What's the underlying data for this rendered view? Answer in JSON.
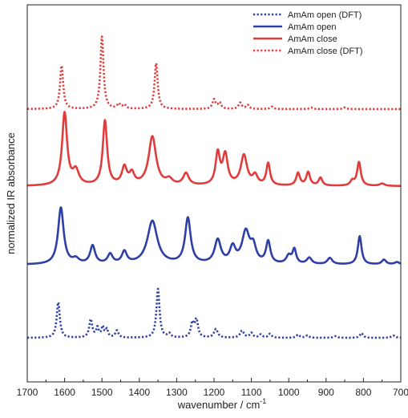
{
  "chart_data": {
    "type": "line",
    "xlabel": "wavenumber / cm",
    "xlabel_superscript": "-1",
    "ylabel": "normalized IR absorbance",
    "xlim": [
      1700,
      700
    ],
    "x_reversed": true,
    "xticks": [
      1700,
      1600,
      1500,
      1400,
      1300,
      1200,
      1100,
      1000,
      900,
      800,
      700
    ],
    "y_ticks_shown": false,
    "grid": false,
    "legend_position": "top-right",
    "series": [
      {
        "name": "AmAm open (DFT)",
        "color": "#2e3fa6",
        "dash": "dotted",
        "offset": 0.05,
        "baseline": 0.02,
        "peaks": [
          [
            1617,
            0.45,
            5
          ],
          [
            1530,
            0.23,
            5
          ],
          [
            1512,
            0.12,
            4
          ],
          [
            1498,
            0.13,
            4
          ],
          [
            1487,
            0.1,
            4
          ],
          [
            1460,
            0.09,
            5
          ],
          [
            1350,
            0.62,
            5
          ],
          [
            1320,
            0.05,
            5
          ],
          [
            1258,
            0.18,
            5
          ],
          [
            1247,
            0.22,
            5
          ],
          [
            1195,
            0.11,
            6
          ],
          [
            1125,
            0.09,
            6
          ],
          [
            1100,
            0.06,
            5
          ],
          [
            1075,
            0.04,
            5
          ],
          [
            1050,
            0.05,
            5
          ],
          [
            975,
            0.04,
            5
          ],
          [
            950,
            0.03,
            5
          ],
          [
            875,
            0.02,
            6
          ],
          [
            805,
            0.06,
            5
          ],
          [
            720,
            0.03,
            6
          ]
        ]
      },
      {
        "name": "AmAm open",
        "color": "#2e3fa6",
        "dash": "solid",
        "offset": 1.0,
        "baseline": 0.0,
        "peaks": [
          [
            1610,
            0.72,
            9
          ],
          [
            1570,
            0.06,
            10
          ],
          [
            1525,
            0.23,
            8
          ],
          [
            1478,
            0.12,
            8
          ],
          [
            1440,
            0.15,
            8
          ],
          [
            1365,
            0.55,
            16
          ],
          [
            1270,
            0.58,
            9
          ],
          [
            1190,
            0.3,
            10
          ],
          [
            1150,
            0.2,
            9
          ],
          [
            1115,
            0.4,
            12
          ],
          [
            1095,
            0.2,
            9
          ],
          [
            1055,
            0.28,
            7
          ],
          [
            1000,
            0.1,
            8
          ],
          [
            985,
            0.18,
            6
          ],
          [
            945,
            0.08,
            8
          ],
          [
            890,
            0.08,
            8
          ],
          [
            810,
            0.36,
            6
          ],
          [
            745,
            0.06,
            7
          ],
          [
            710,
            0.03,
            8
          ]
        ]
      },
      {
        "name": "AmAm close",
        "color": "#e23b3b",
        "dash": "solid",
        "offset": 2.0,
        "baseline": 0.0,
        "peaks": [
          [
            1600,
            0.92,
            8
          ],
          [
            1570,
            0.18,
            10
          ],
          [
            1492,
            0.82,
            7
          ],
          [
            1440,
            0.22,
            8
          ],
          [
            1420,
            0.14,
            8
          ],
          [
            1365,
            0.62,
            12
          ],
          [
            1320,
            0.07,
            10
          ],
          [
            1275,
            0.15,
            9
          ],
          [
            1190,
            0.4,
            7
          ],
          [
            1170,
            0.38,
            8
          ],
          [
            1120,
            0.38,
            10
          ],
          [
            1090,
            0.12,
            8
          ],
          [
            1055,
            0.28,
            6
          ],
          [
            975,
            0.16,
            6
          ],
          [
            948,
            0.17,
            6
          ],
          [
            915,
            0.1,
            6
          ],
          [
            830,
            0.06,
            6
          ],
          [
            812,
            0.3,
            6
          ],
          [
            750,
            0.03,
            8
          ]
        ]
      },
      {
        "name": "AmAm close (DFT)",
        "color": "#e23b3b",
        "dash": "dotted",
        "offset": 2.98,
        "baseline": 0.0,
        "peaks": [
          [
            1608,
            0.55,
            5
          ],
          [
            1500,
            0.92,
            5
          ],
          [
            1455,
            0.06,
            5
          ],
          [
            1440,
            0.05,
            5
          ],
          [
            1355,
            0.58,
            5
          ],
          [
            1200,
            0.12,
            5
          ],
          [
            1185,
            0.08,
            5
          ],
          [
            1130,
            0.08,
            5
          ],
          [
            1110,
            0.05,
            5
          ],
          [
            1045,
            0.03,
            5
          ],
          [
            940,
            0.02,
            5
          ],
          [
            850,
            0.02,
            5
          ]
        ]
      }
    ]
  }
}
